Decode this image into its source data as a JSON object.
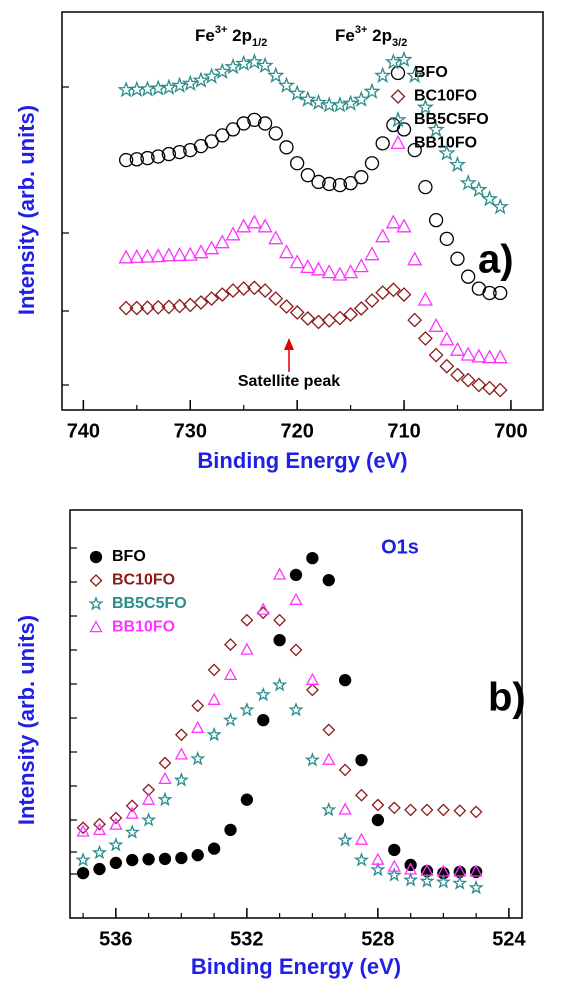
{
  "chart_data": [
    {
      "type": "scatter",
      "panel_label": "a)",
      "x_label": "Binding Energy (eV)",
      "y_label": "Intensity (arb. units)",
      "xlim": [
        742,
        697
      ],
      "xticks": [
        740,
        730,
        720,
        710,
        700
      ],
      "ylim": [
        0,
        100
      ],
      "legend": "upper right",
      "peak_labels": [
        {
          "base": "Fe",
          "sup": "3+",
          "mid": " 2p",
          "sub": "1/2"
        },
        {
          "base": "Fe",
          "sup": "3+",
          "mid": " 2p",
          "sub": "3/2"
        }
      ],
      "annotation": "Satellite peak",
      "x": [
        736,
        735,
        734,
        733,
        732,
        731,
        730,
        729,
        728,
        727,
        726,
        725,
        724,
        723,
        722,
        721,
        720,
        719,
        718,
        717,
        716,
        715,
        714,
        713,
        712,
        711,
        710,
        709,
        708,
        707,
        706,
        705,
        704,
        703,
        702,
        701
      ],
      "series": [
        {
          "name": "BFO",
          "color": "#000000",
          "marker": "circle",
          "filled": false,
          "values": [
            62.8,
            63,
            63.3,
            63.7,
            64.3,
            64.8,
            65.3,
            66.3,
            67.5,
            69,
            70.5,
            72,
            72.9,
            72,
            69.5,
            66,
            62,
            59,
            57.3,
            56.8,
            56.5,
            57,
            58.5,
            62,
            67,
            71.6,
            70.5,
            65.3,
            56,
            47.7,
            43,
            38,
            33.5,
            30.5,
            29.4,
            29.4
          ]
        },
        {
          "name": "BC10FO",
          "color": "#8b1a1a",
          "marker": "diamond",
          "filled": false,
          "values": [
            25.6,
            25.6,
            25.7,
            25.8,
            25.9,
            26.1,
            26.4,
            27,
            28,
            29,
            30,
            30.5,
            30.7,
            30,
            28,
            26,
            24.5,
            23,
            22.1,
            22.5,
            23.1,
            24,
            25.5,
            27.5,
            29.5,
            30.2,
            29,
            22.6,
            18,
            13.8,
            11,
            8.8,
            7.5,
            6.3,
            5.5,
            5
          ]
        },
        {
          "name": "BB5C5FO",
          "color": "#2a8c8c",
          "marker": "star",
          "filled": false,
          "values": [
            80.4,
            80.5,
            80.6,
            80.8,
            81,
            81.5,
            82,
            82.8,
            83.8,
            85,
            86.2,
            87,
            87.4,
            86.5,
            84,
            81.5,
            79.5,
            78,
            77.2,
            76.6,
            76.6,
            77,
            78,
            80,
            84,
            87.4,
            88,
            84,
            76,
            70.4,
            64.5,
            61.6,
            57,
            55.3,
            53,
            51
          ]
        },
        {
          "name": "BB10FO",
          "color": "#ff33ff",
          "marker": "triangle",
          "filled": false,
          "values": [
            38.2,
            38.3,
            38.4,
            38.5,
            38.7,
            38.8,
            38.9,
            39.5,
            40.5,
            42,
            44,
            46,
            47,
            46,
            43,
            39.5,
            37,
            35.8,
            35.2,
            34.5,
            33.9,
            34.5,
            36,
            39,
            43.5,
            47,
            46,
            37.7,
            27.6,
            21,
            17.6,
            15,
            13.8,
            13.3,
            13.1,
            13.1
          ]
        }
      ]
    },
    {
      "type": "scatter",
      "panel_label": "b)",
      "x_label": "Binding Energy (eV)",
      "y_label": "Intensity (arb. units)",
      "xlim": [
        537.4,
        523.6
      ],
      "xticks": [
        536,
        532,
        528,
        524
      ],
      "ylim": [
        0,
        100
      ],
      "legend": "upper left",
      "annotation": "O1s",
      "x": [
        537,
        536.5,
        536,
        535.5,
        535,
        534.5,
        534,
        533.5,
        533,
        532.5,
        532,
        531.5,
        531,
        530.5,
        530,
        529.5,
        529,
        528.5,
        528,
        527.5,
        527,
        526.5,
        526,
        525.5,
        525
      ],
      "series": [
        {
          "name": "BFO",
          "color": "#000000",
          "marker": "circle",
          "filled": true,
          "values": [
            11,
            12,
            13.5,
            14.2,
            14.4,
            14.5,
            14.7,
            15.4,
            17,
            21.6,
            29,
            48.5,
            68.1,
            84.1,
            88.2,
            82.8,
            58.3,
            38.7,
            24,
            16.7,
            13,
            11.5,
            11,
            11.3,
            11.3
          ]
        },
        {
          "name": "BC10FO",
          "color": "#8b1a1a",
          "marker": "diamond",
          "filled": false,
          "values": [
            22.1,
            23,
            24.5,
            27.5,
            31.4,
            38,
            44.9,
            52,
            60.8,
            67,
            73,
            74.8,
            73,
            65.7,
            55.9,
            46.1,
            36.3,
            30.1,
            27.7,
            27,
            26.5,
            26.5,
            26.5,
            26.3,
            26
          ]
        },
        {
          "name": "BB5C5FO",
          "color": "#2a8c8c",
          "marker": "star",
          "filled": false,
          "values": [
            14.2,
            16,
            17.9,
            21,
            24,
            29,
            33.8,
            39,
            44.9,
            48.5,
            51,
            54.7,
            57.1,
            51,
            38.7,
            26.5,
            19.1,
            14.2,
            11.8,
            10.5,
            9.3,
            9,
            8.8,
            8.5,
            7.4
          ]
        },
        {
          "name": "BB10FO",
          "color": "#ff33ff",
          "marker": "triangle",
          "filled": false,
          "values": [
            21.1,
            21.5,
            22.8,
            25.5,
            28.9,
            34,
            40,
            46.5,
            53.4,
            59.5,
            65.7,
            75.5,
            84.1,
            77.9,
            58.3,
            38.7,
            26.5,
            19.1,
            14.2,
            12.5,
            11.8,
            11.5,
            11.3,
            11.3,
            11.3
          ]
        }
      ]
    }
  ]
}
